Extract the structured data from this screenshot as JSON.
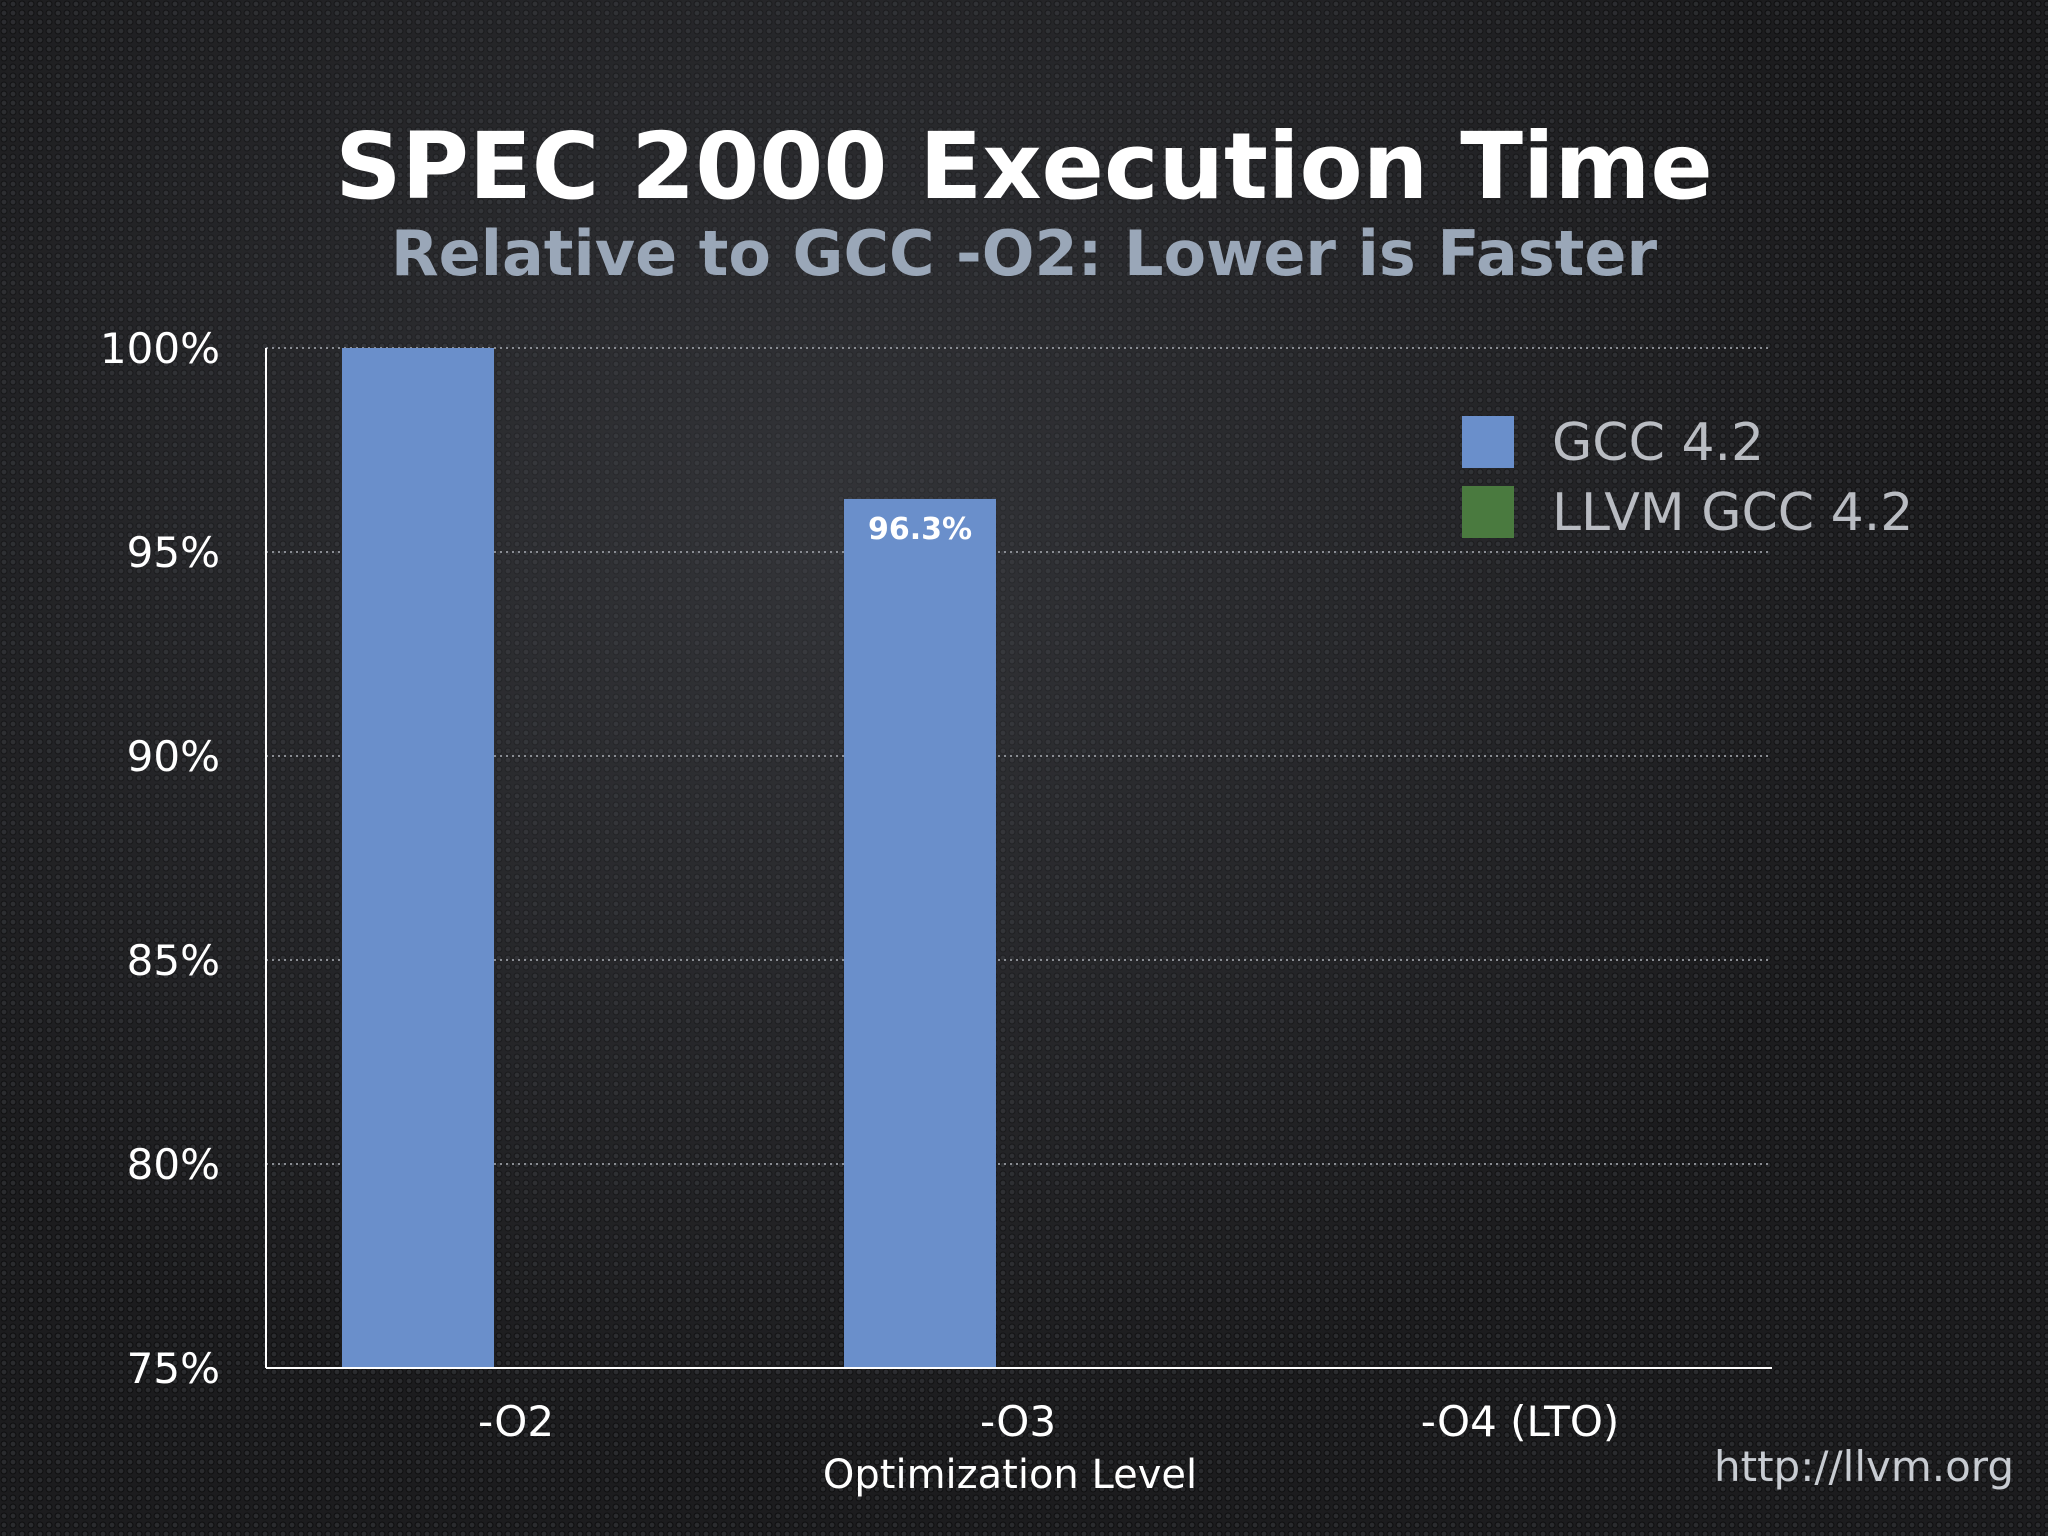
{
  "chart_data": {
    "type": "bar",
    "title": "SPEC 2000 Execution Time",
    "subtitle": "Relative to GCC -O2: Lower is Faster",
    "xlabel": "Optimization Level",
    "ylabel": "",
    "categories": [
      "-O2",
      "-O3",
      "-O4 (LTO)"
    ],
    "ylim": [
      75,
      100
    ],
    "yticks": [
      75,
      80,
      85,
      90,
      95,
      100
    ],
    "ytick_labels": [
      "75%",
      "80%",
      "85%",
      "90%",
      "95%",
      "100%"
    ],
    "grid": true,
    "legend_position": "top-right",
    "series": [
      {
        "name": "GCC 4.2",
        "color": "#6a8fcb",
        "values": [
          100,
          96.3,
          null
        ],
        "data_labels": [
          null,
          "96.3%",
          null
        ]
      },
      {
        "name": "LLVM GCC 4.2",
        "color": "#4a7a3f",
        "values": [
          null,
          null,
          null
        ],
        "data_labels": [
          null,
          null,
          null
        ]
      }
    ]
  },
  "footer": {
    "url": "http://llvm.org"
  }
}
